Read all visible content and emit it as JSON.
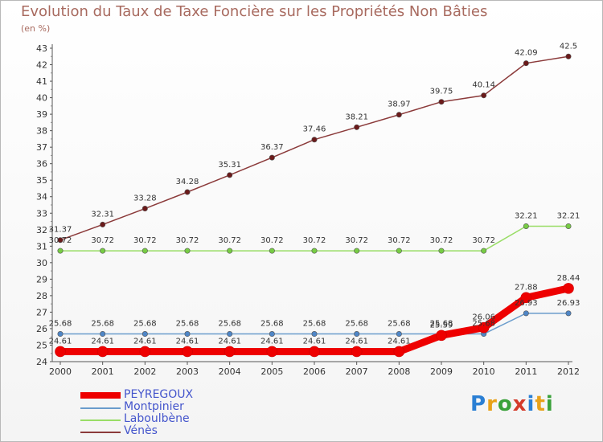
{
  "title": "Evolution du Taux de Taxe Foncière sur les Propriétés Non Bâties",
  "unit_label": "(en %)",
  "logo_text": "Proxiti",
  "chart_data": {
    "type": "line",
    "title": "Evolution du Taux de Taxe Foncière sur les Propriétés Non Bâties",
    "ylabel": "(en %)",
    "x": [
      "2000",
      "2001",
      "2002",
      "2003",
      "2004",
      "2005",
      "2006",
      "2007",
      "2008",
      "2009",
      "2010",
      "2011",
      "2012"
    ],
    "ylim": [
      24,
      43
    ],
    "yticks": [
      24,
      25,
      26,
      27,
      28,
      29,
      30,
      31,
      32,
      33,
      34,
      35,
      36,
      37,
      38,
      39,
      40,
      41,
      42,
      43
    ],
    "grid": false,
    "legend_position": "bottom-left",
    "series": [
      {
        "name": "PEYREGOUX",
        "color": "#ee0000",
        "marker": "#ee0000",
        "width": 9,
        "values": [
          24.61,
          24.61,
          24.61,
          24.61,
          24.61,
          24.61,
          24.61,
          24.61,
          24.61,
          25.59,
          26.06,
          27.88,
          28.44
        ],
        "labels": [
          "24.61",
          "24.61",
          "24.61",
          "24.61",
          "24.61",
          "24.61",
          "24.61",
          "24.61",
          "24.61",
          "25.59",
          "26.06",
          "27.88",
          "28.44"
        ]
      },
      {
        "name": "Montpinier",
        "color": "#6a9ccc",
        "marker": "#4f86c6",
        "width": 1.5,
        "values": [
          25.68,
          25.68,
          25.68,
          25.68,
          25.68,
          25.68,
          25.68,
          25.68,
          25.68,
          25.68,
          25.68,
          26.93,
          26.93
        ],
        "labels": [
          "25.68",
          "25.68",
          "25.68",
          "25.68",
          "25.68",
          "25.68",
          "25.68",
          "25.68",
          "25.68",
          "25.68",
          "25.68",
          "26.93",
          "26.93"
        ]
      },
      {
        "name": "Laboulbène",
        "color": "#99dd66",
        "marker": "#77cc44",
        "width": 1.5,
        "values": [
          30.72,
          30.72,
          30.72,
          30.72,
          30.72,
          30.72,
          30.72,
          30.72,
          30.72,
          30.72,
          30.72,
          32.21,
          32.21
        ],
        "labels": [
          "30.72",
          "30.72",
          "30.72",
          "30.72",
          "30.72",
          "30.72",
          "30.72",
          "30.72",
          "30.72",
          "30.72",
          "30.72",
          "32.21",
          "32.21"
        ]
      },
      {
        "name": "Vénès",
        "color": "#8b3a3a",
        "marker": "#6b1a1a",
        "width": 1.5,
        "values": [
          31.37,
          32.31,
          33.28,
          34.28,
          35.31,
          36.37,
          37.46,
          38.21,
          38.97,
          39.75,
          40.14,
          42.09,
          42.5
        ],
        "labels": [
          "31.37",
          "32.31",
          "33.28",
          "34.28",
          "35.31",
          "36.37",
          "37.46",
          "38.21",
          "38.97",
          "39.75",
          "40.14",
          "42.09",
          "42.5"
        ]
      }
    ]
  }
}
